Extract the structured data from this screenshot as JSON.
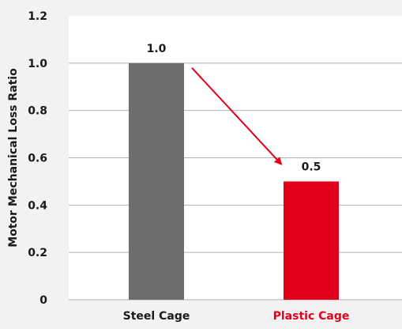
{
  "chart_data": {
    "type": "bar",
    "title": "",
    "xlabel": "",
    "ylabel": "Motor Mechanical Loss Ratio",
    "categories": [
      "Steel Cage",
      "Plastic Cage"
    ],
    "values": [
      1.0,
      0.5
    ],
    "data_labels": [
      "1.0",
      "0.5"
    ],
    "ylim": [
      0,
      1.2
    ],
    "y_ticks": [
      0,
      0.2,
      0.4,
      0.6,
      0.8,
      1.0,
      1.2
    ],
    "y_tick_labels": [
      "0",
      "0.2",
      "0.4",
      "0.6",
      "0.8",
      "1.0",
      "1.2"
    ],
    "grid": true,
    "bar_colors": [
      "#6d6d6d",
      "#e3001b"
    ],
    "category_label_colors": [
      "#1a1a1a",
      "#e3001b"
    ],
    "annotation": {
      "type": "arrow",
      "from_category": "Steel Cage",
      "to_category": "Plastic Cage",
      "color": "#e3001b"
    },
    "background": "#f2f2f2",
    "plot_background": "#ffffff",
    "grid_color": "#b0b0b0"
  }
}
